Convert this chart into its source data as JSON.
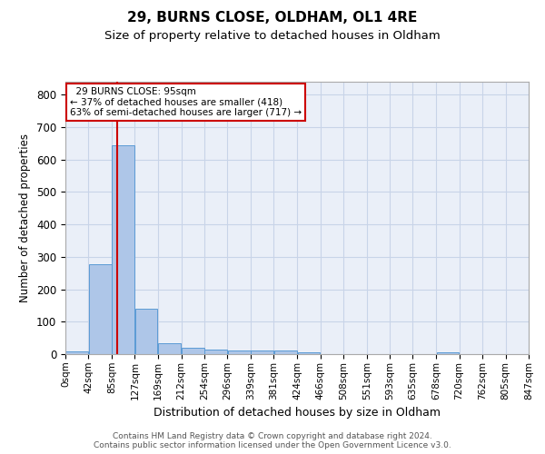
{
  "title": "29, BURNS CLOSE, OLDHAM, OL1 4RE",
  "subtitle": "Size of property relative to detached houses in Oldham",
  "xlabel": "Distribution of detached houses by size in Oldham",
  "ylabel": "Number of detached properties",
  "footer_line1": "Contains HM Land Registry data © Crown copyright and database right 2024.",
  "footer_line2": "Contains public sector information licensed under the Open Government Licence v3.0.",
  "annotation_title": "29 BURNS CLOSE: 95sqm",
  "annotation_line2": "← 37% of detached houses are smaller (418)",
  "annotation_line3": "63% of semi-detached houses are larger (717) →",
  "property_size_sqm": 95,
  "bar_edges": [
    0,
    42,
    85,
    127,
    169,
    212,
    254,
    296,
    339,
    381,
    424,
    466,
    508,
    551,
    593,
    635,
    678,
    720,
    762,
    805,
    847
  ],
  "bar_values": [
    8,
    276,
    645,
    140,
    35,
    20,
    14,
    11,
    10,
    10,
    5,
    1,
    1,
    1,
    0,
    0,
    7,
    0,
    0,
    0
  ],
  "bar_color": "#aec6e8",
  "bar_edge_color": "#5b9bd5",
  "vline_color": "#cc0000",
  "vline_x": 95,
  "ylim": [
    0,
    840
  ],
  "yticks": [
    0,
    100,
    200,
    300,
    400,
    500,
    600,
    700,
    800
  ],
  "grid_color": "#c8d4e8",
  "bg_color": "#eaeff8",
  "annotation_box_color": "#cc0000",
  "title_fontsize": 11,
  "subtitle_fontsize": 9.5,
  "footer_fontsize": 6.5
}
